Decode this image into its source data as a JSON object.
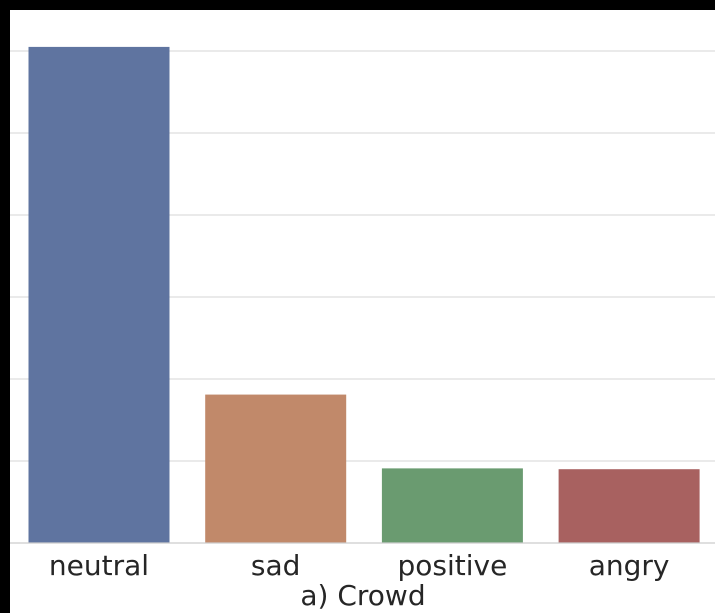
{
  "chart_data": {
    "type": "bar",
    "title": "a) Crowd",
    "xlabel": "",
    "ylabel": "",
    "categories": [
      "neutral",
      "sad",
      "positive",
      "angry"
    ],
    "values": [
      6.05,
      1.81,
      0.91,
      0.9
    ],
    "ylim": [
      0,
      6.5
    ],
    "yticks": [
      0,
      1,
      2,
      3,
      4,
      5,
      6
    ],
    "grid": true,
    "legend": "none",
    "colors": [
      "#5f74a0",
      "#c1896a",
      "#6a9b70",
      "#a86160"
    ]
  }
}
